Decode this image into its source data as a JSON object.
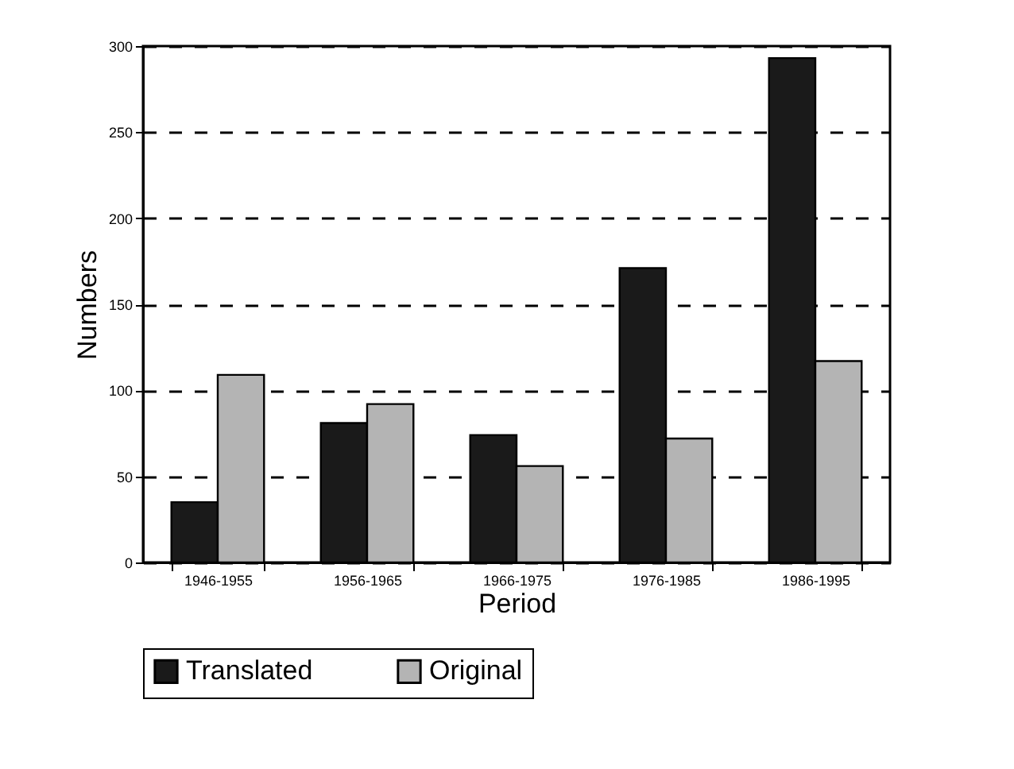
{
  "chart_data": {
    "type": "bar",
    "xlabel": "Period",
    "ylabel": "Numbers",
    "categories": [
      "1946-1955",
      "1956-1965",
      "1966-1975",
      "1976-1985",
      "1986-1995"
    ],
    "series": [
      {
        "name": "Translated",
        "color": "#1a1a1a",
        "values": [
          35,
          81,
          74,
          171,
          293
        ]
      },
      {
        "name": "Original",
        "color": "#b4b4b4",
        "values": [
          109,
          92,
          56,
          72,
          117
        ]
      }
    ],
    "ylim": [
      0,
      300
    ],
    "yticks": [
      0,
      50,
      100,
      150,
      200,
      250,
      300
    ],
    "grid": "y",
    "legend": "bottom"
  }
}
